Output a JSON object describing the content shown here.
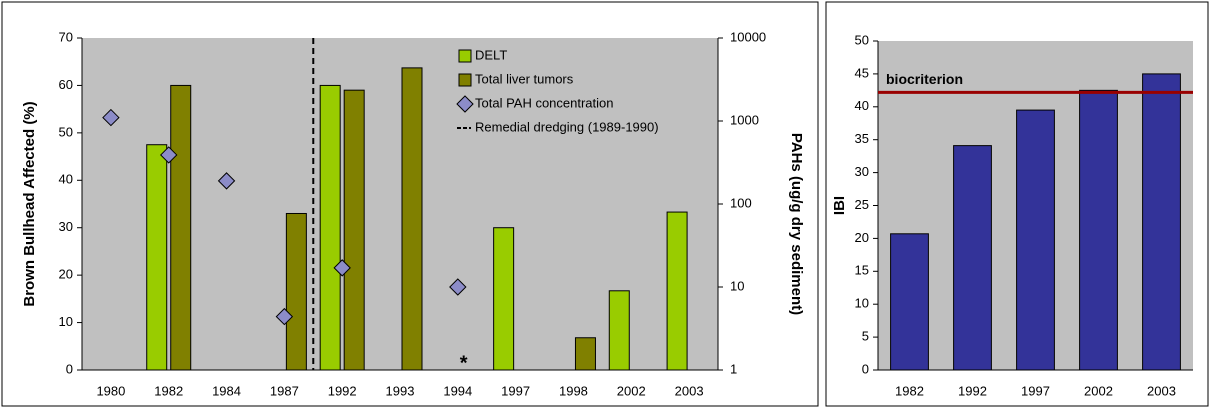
{
  "chart_data": [
    {
      "type": "bar",
      "categories": [
        "1980",
        "1982",
        "1984",
        "1987",
        "1992",
        "1993",
        "1994",
        "1997",
        "1998",
        "2002",
        "2003"
      ],
      "series": [
        {
          "name": "DELT",
          "color": "#99cc00",
          "values": [
            null,
            47.5,
            null,
            null,
            60,
            null,
            null,
            30,
            null,
            16.7,
            33.3
          ]
        },
        {
          "name": "Total liver tumors",
          "color": "#808000",
          "values": [
            null,
            60,
            null,
            33,
            59,
            63.7,
            null,
            null,
            6.8,
            null,
            null
          ]
        },
        {
          "name": "Total PAH concentration",
          "color": "#8c8cc8",
          "axis": "y2",
          "values": [
            1100,
            390,
            190,
            4.4,
            17,
            null,
            10,
            null,
            null,
            null,
            null
          ]
        }
      ],
      "reference_line": {
        "name": "Remedial dredging (1989-1990)"
      },
      "annotation": "*",
      "ylabel": "Brown Bullhead Affected (%)",
      "y2label": "PAHs (ug/g dry sediment)",
      "ylim": [
        0,
        70
      ],
      "yticks": [
        0,
        10,
        20,
        30,
        40,
        50,
        60,
        70
      ],
      "y2lim": [
        1,
        10000
      ],
      "y2ticks": [
        1,
        10,
        100,
        1000,
        10000
      ],
      "y2log": true
    },
    {
      "type": "bar",
      "categories": [
        "1982",
        "1992",
        "1997",
        "2002",
        "2003"
      ],
      "values": [
        20.7,
        34.1,
        39.5,
        42.5,
        45
      ],
      "color": "#333399",
      "threshold": {
        "label": "biocriterion",
        "value": 42.2,
        "color": "#990000"
      },
      "ylabel": "IBI",
      "ylim": [
        0,
        50
      ],
      "yticks": [
        0,
        5,
        10,
        15,
        20,
        25,
        30,
        35,
        40,
        45,
        50
      ]
    }
  ]
}
